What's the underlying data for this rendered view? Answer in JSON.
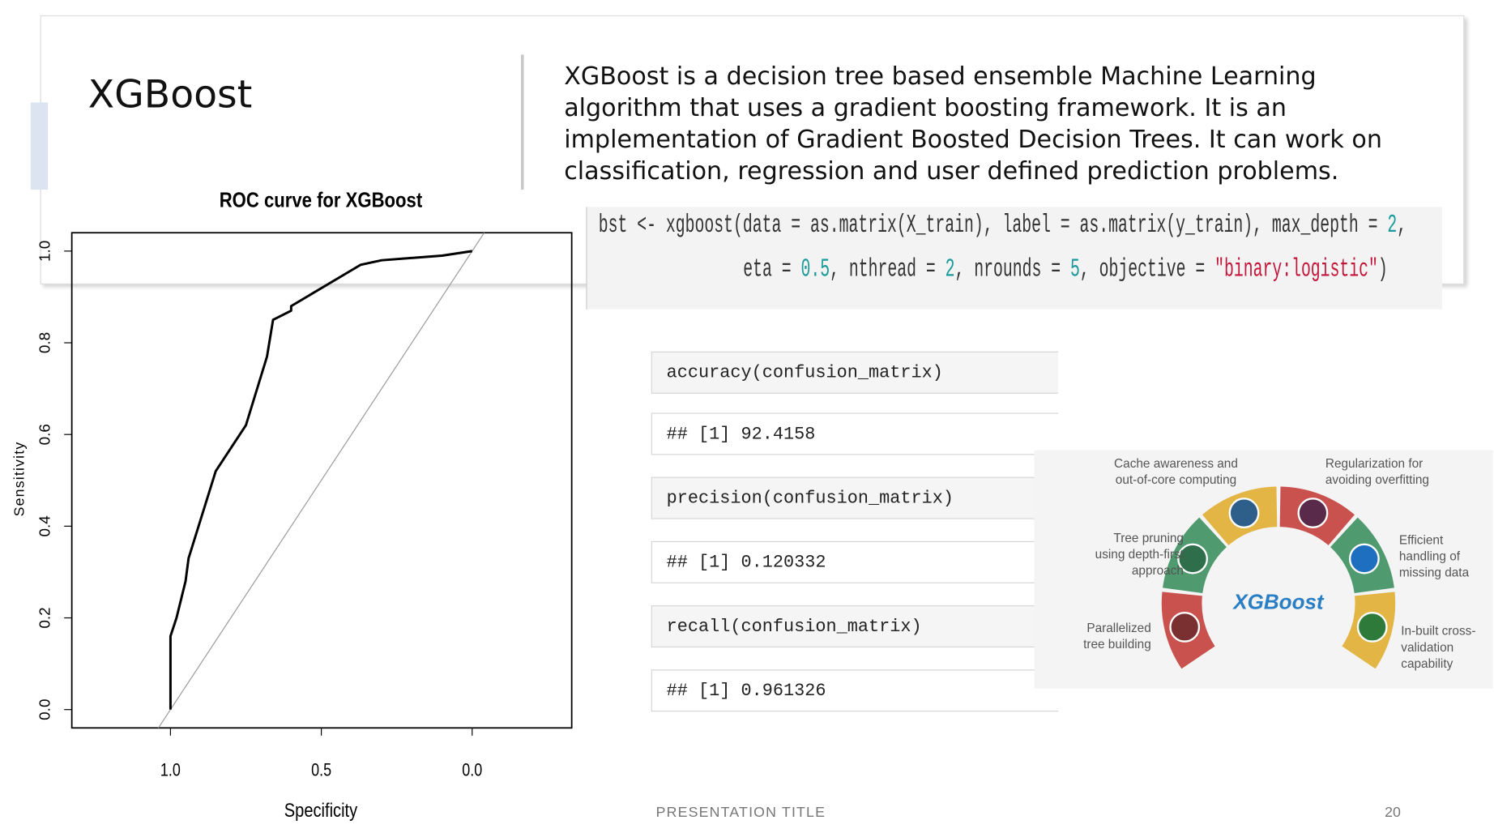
{
  "slide": {
    "title": "XGBoost",
    "paragraph": "XGBoost is a decision tree based ensemble Machine Learning algorithm that uses a gradient boosting framework. It is an implementation of Gradient Boosted Decision Trees. It can work on classification, regression and user defined prediction problems.",
    "code": {
      "lines": [
        [
          "bst <- xgboost(data = as.matrix(X_train), label = as.matrix(y_train), max_depth = ",
          "2",
          ","
        ],
        [
          "eta = ",
          "0.5",
          ", nthread = ",
          "2",
          ", nrounds = ",
          "5",
          ", objective = ",
          "\"binary:logistic\"",
          ")"
        ]
      ]
    },
    "console": [
      "accuracy(confusion_matrix)",
      "## [1] 92.4158",
      "precision(confusion_matrix)",
      "## [1] 0.120332",
      "recall(confusion_matrix)",
      "## [1] 0.961326"
    ],
    "infographic": {
      "center": "XGBoost",
      "labels": [
        [
          "Parallelized",
          "tree building"
        ],
        [
          "Tree pruning",
          "using depth-first",
          "approach"
        ],
        [
          "Cache awareness and",
          "out-of-core computing"
        ],
        [
          "Regularization for",
          "avoiding overfitting"
        ],
        [
          "Efficient",
          "handling of",
          "missing data"
        ],
        [
          "In-built cross-",
          "validation",
          "capability"
        ]
      ]
    },
    "footer": "PRESENTATION TITLE",
    "page_number": "20"
  },
  "chart_data": {
    "type": "line",
    "title": "ROC curve for XGBoost",
    "x_label": "Specificity",
    "y_label": "Sensitivity",
    "x": [
      1.0,
      1.0,
      0.98,
      0.95,
      0.94,
      0.85,
      0.75,
      0.68,
      0.66,
      0.6,
      0.6,
      0.37,
      0.3,
      0.1,
      0.0
    ],
    "values": [
      0.0,
      0.16,
      0.2,
      0.28,
      0.33,
      0.52,
      0.62,
      0.77,
      0.85,
      0.87,
      0.88,
      0.97,
      0.98,
      0.99,
      1.0
    ],
    "color": "#000000",
    "xlim": [
      1.327,
      -0.33
    ],
    "ylim": [
      -0.04,
      1.04
    ],
    "xticks": [
      {
        "value": 1.0,
        "label": "1.0"
      },
      0.5,
      {
        "value": 0.0,
        "label": "0.0"
      }
    ],
    "yticks": [
      {
        "value": 0.0,
        "label": "0.0"
      },
      0.2,
      0.4,
      0.6,
      0.8,
      {
        "value": 1.0,
        "label": "1.0"
      }
    ]
  }
}
